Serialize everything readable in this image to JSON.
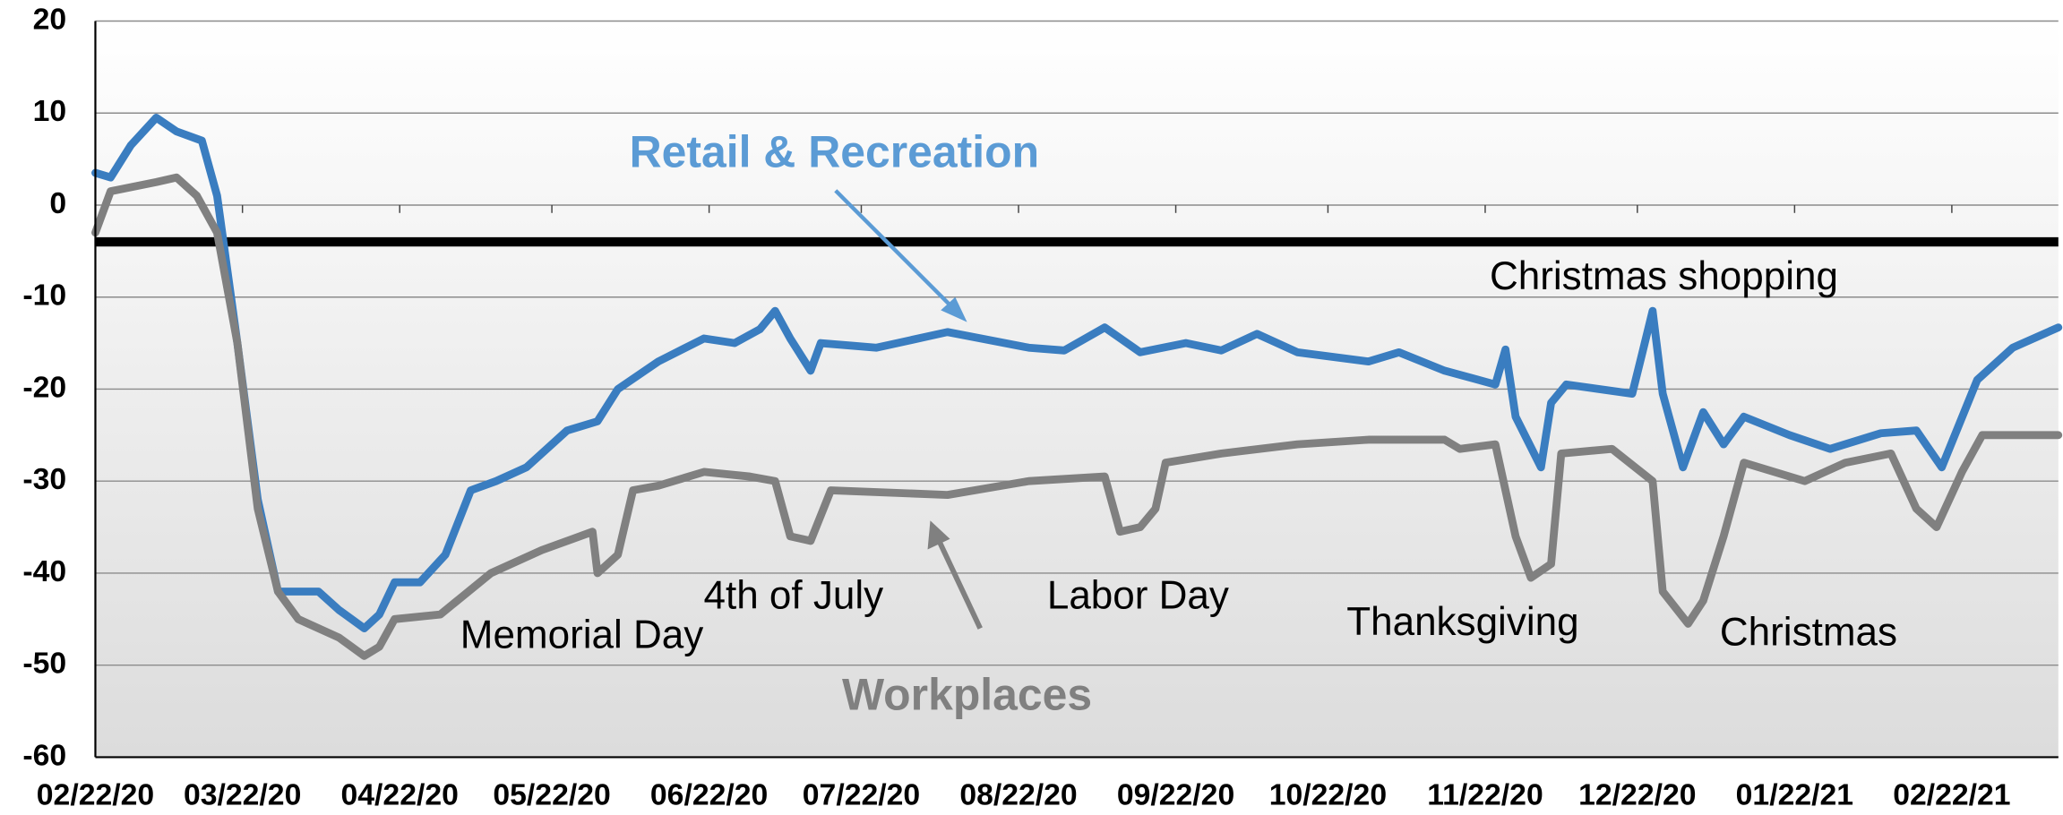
{
  "chart_data": {
    "type": "line",
    "xlim": [
      "02/22/20",
      "03/15/21"
    ],
    "xticks": [
      "02/22/20",
      "03/22/20",
      "04/22/20",
      "05/22/20",
      "06/22/20",
      "07/22/20",
      "08/22/20",
      "09/22/20",
      "10/22/20",
      "11/22/20",
      "12/22/20",
      "01/22/21",
      "02/22/21"
    ],
    "ylim": [
      -60,
      20
    ],
    "yticks": [
      -60,
      -50,
      -40,
      -30,
      -20,
      -10,
      0,
      10,
      20
    ],
    "grid": true,
    "hline": -4,
    "hline_color": "#000000",
    "series": [
      {
        "name": "Retail & Recreation",
        "color": "#3a7dc0",
        "label_color": "#5b9bd5",
        "x": [
          "02/22/20",
          "02/25/20",
          "02/29/20",
          "03/05/20",
          "03/09/20",
          "03/14/20",
          "03/17/20",
          "03/21/20",
          "03/25/20",
          "03/29/20",
          "04/02/20",
          "04/06/20",
          "04/10/20",
          "04/15/20",
          "04/18/20",
          "04/21/20",
          "04/26/20",
          "05/01/20",
          "05/06/20",
          "05/11/20",
          "05/17/20",
          "05/25/20",
          "05/31/20",
          "06/04/20",
          "06/12/20",
          "06/21/20",
          "06/27/20",
          "07/02/20",
          "07/05/20",
          "07/08/20",
          "07/12/20",
          "07/14/20",
          "07/25/20",
          "08/08/20",
          "08/24/20",
          "08/31/20",
          "09/08/20",
          "09/15/20",
          "09/24/20",
          "10/01/20",
          "10/08/20",
          "10/16/20",
          "10/30/20",
          "11/05/20",
          "11/14/20",
          "11/24/20",
          "11/26/20",
          "11/28/20",
          "12/03/20",
          "12/05/20",
          "12/08/20",
          "12/21/20",
          "12/23/20",
          "12/25/20",
          "12/27/20",
          "12/31/20",
          "01/04/21",
          "01/08/21",
          "01/12/21",
          "01/21/21",
          "01/29/21",
          "02/08/21",
          "02/15/21",
          "02/20/21",
          "02/27/21",
          "03/06/21",
          "03/15/21"
        ],
        "values": [
          3.5,
          3,
          6.5,
          9.5,
          8,
          7,
          1,
          -15,
          -32,
          -42,
          -42,
          -42,
          -44,
          -46,
          -44.5,
          -41,
          -41,
          -38,
          -31,
          -30,
          -28.5,
          -24.5,
          -23.5,
          -20,
          -17,
          -14.5,
          -15,
          -13.5,
          -11.5,
          -14.5,
          -18,
          -15,
          -15.5,
          -13.8,
          -15.5,
          -15.8,
          -13.3,
          -16,
          -15,
          -15.8,
          -14,
          -16,
          -17,
          -16,
          -18,
          -19.5,
          -15.7,
          -23,
          -28.5,
          -21.5,
          -19.5,
          -20.5,
          -16,
          -11.5,
          -20.5,
          -28.5,
          -22.5,
          -26,
          -23,
          -25,
          -26.5,
          -24.8,
          -24.5,
          -28.5,
          -19,
          -15.5,
          -13.3
        ]
      },
      {
        "name": "Workplaces",
        "color": "#808080",
        "label_color": "#808080",
        "x": [
          "02/22/20",
          "02/25/20",
          "03/05/20",
          "03/09/20",
          "03/13/20",
          "03/17/20",
          "03/21/20",
          "03/25/20",
          "03/29/20",
          "04/02/20",
          "04/10/20",
          "04/15/20",
          "04/18/20",
          "04/21/20",
          "04/30/20",
          "05/10/20",
          "05/20/20",
          "05/30/20",
          "05/31/20",
          "06/04/20",
          "06/07/20",
          "06/12/20",
          "06/21/20",
          "06/30/20",
          "07/05/20",
          "07/08/20",
          "07/12/20",
          "07/16/20",
          "08/08/20",
          "08/24/20",
          "09/08/20",
          "09/11/20",
          "09/15/20",
          "09/18/20",
          "09/20/20",
          "10/01/20",
          "10/16/20",
          "10/30/20",
          "11/14/20",
          "11/17/20",
          "11/24/20",
          "11/28/20",
          "12/01/20",
          "12/05/20",
          "12/07/20",
          "12/17/20",
          "12/25/20",
          "12/27/20",
          "01/01/21",
          "01/04/21",
          "01/08/21",
          "01/12/21",
          "01/24/21",
          "02/01/21",
          "02/10/21",
          "02/15/21",
          "02/19/21",
          "02/24/21",
          "02/28/21",
          "03/15/21"
        ],
        "values": [
          -3,
          1.5,
          2.5,
          3,
          1,
          -3,
          -15,
          -33,
          -42,
          -45,
          -47,
          -49,
          -48,
          -45,
          -44.5,
          -40,
          -37.5,
          -35.5,
          -40,
          -38,
          -31,
          -30.5,
          -29,
          -29.5,
          -30,
          -36,
          -36.5,
          -31,
          -31.5,
          -30,
          -29.5,
          -35.5,
          -35,
          -33,
          -28,
          -27,
          -26,
          -25.5,
          -25.5,
          -26.5,
          -26,
          -36,
          -40.5,
          -39,
          -27,
          -26.5,
          -30,
          -42,
          -45.5,
          -43,
          -36,
          -28,
          -30,
          -28,
          -27,
          -33,
          -35,
          -29,
          -25,
          -25
        ]
      }
    ],
    "annotations": [
      "Christmas shopping",
      "Memorial Day",
      "4th of July",
      "Labor Day",
      "Thanksgiving",
      "Christmas"
    ]
  }
}
